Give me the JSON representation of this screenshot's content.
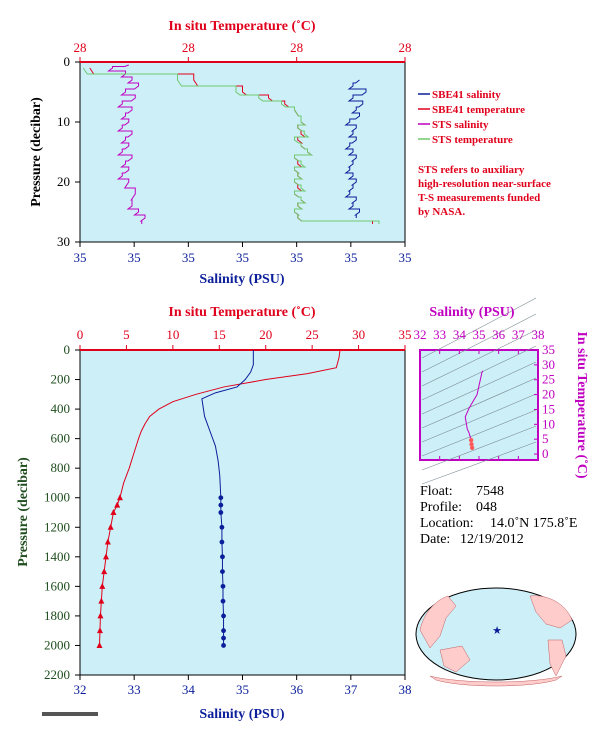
{
  "chart_data": [
    {
      "type": "line",
      "title": "",
      "top_axis_label": "In situ Temperature (˚C)",
      "top_ticks": [
        "28",
        "28",
        "28",
        "28"
      ],
      "bottom_axis_label": "Salinity (PSU)",
      "bottom_ticks": [
        "35",
        "35",
        "35",
        "35",
        "35",
        "35",
        "35"
      ],
      "ylabel": "Pressure (decibar)",
      "y_ticks": [
        "0",
        "10",
        "20",
        "30"
      ],
      "ylim": [
        30,
        0
      ],
      "grid": false,
      "legend_position": "right",
      "series": [
        {
          "name": "SBE41 salinity",
          "color": "#0b1f9a",
          "x_norm": [
            0.86,
            0.84,
            0.88,
            0.84,
            0.87,
            0.85,
            0.86,
            0.83,
            0.85,
            0.84,
            0.85,
            0.83,
            0.84,
            0.85,
            0.84,
            0.83,
            0.84,
            0.85,
            0.84,
            0.83,
            0.85,
            0.84,
            0.86,
            0.85
          ],
          "y": [
            3,
            4,
            5,
            6,
            7,
            8,
            9,
            10,
            11,
            12,
            13,
            14,
            15,
            16,
            17,
            18,
            19,
            20,
            21,
            22,
            23,
            24,
            25,
            26
          ]
        },
        {
          "name": "SBE41 temperature",
          "color": "#e0001b",
          "x_norm": [
            0.03,
            0.35,
            0.5,
            0.58,
            0.63,
            0.66,
            0.68,
            0.67,
            0.68,
            0.67,
            0.68,
            0.7,
            0.66,
            0.67,
            0.66,
            0.67,
            0.66,
            0.67,
            0.66,
            0.68,
            0.67,
            0.66,
            0.67,
            0.9
          ],
          "y": [
            1,
            3,
            5,
            6,
            7,
            8,
            10,
            11,
            12,
            13,
            14,
            15,
            16,
            17,
            18,
            19,
            20,
            21,
            22,
            23,
            24,
            25,
            26,
            27
          ]
        },
        {
          "name": "STS salinity",
          "color": "#c000c0",
          "x_norm": [
            0.15,
            0.1,
            0.14,
            0.16,
            0.18,
            0.14,
            0.17,
            0.13,
            0.16,
            0.14,
            0.15,
            0.13,
            0.16,
            0.14,
            0.15,
            0.13,
            0.16,
            0.14,
            0.15,
            0.13,
            0.15,
            0.17,
            0.16,
            0.18,
            0.2,
            0.19
          ],
          "y": [
            0.5,
            1,
            2,
            3,
            4,
            5,
            6,
            7,
            8,
            9,
            10,
            11,
            12,
            13,
            14,
            15,
            16,
            17,
            18,
            19,
            20,
            22,
            24,
            25,
            26,
            27
          ]
        },
        {
          "name": "STS temperature",
          "color": "#6ec86e",
          "x_norm": [
            0.01,
            0.3,
            0.48,
            0.55,
            0.62,
            0.66,
            0.68,
            0.67,
            0.69,
            0.66,
            0.68,
            0.7,
            0.66,
            0.68,
            0.66,
            0.67,
            0.66,
            0.68,
            0.66,
            0.68,
            0.67,
            0.66,
            0.67,
            0.92
          ],
          "y": [
            1,
            3,
            5,
            6,
            7,
            8,
            10,
            11,
            12,
            13,
            14,
            15,
            16,
            17,
            18,
            19,
            20,
            21,
            22,
            23,
            24,
            25,
            26,
            27
          ]
        }
      ]
    },
    {
      "type": "line",
      "top_axis_label": "In situ Temperature (˚C)",
      "top_ticks": [
        "0",
        "5",
        "10",
        "15",
        "20",
        "25",
        "30",
        "35"
      ],
      "xlim_top": [
        0,
        35
      ],
      "bottom_axis_label": "Salinity (PSU)",
      "bottom_ticks": [
        "32",
        "33",
        "34",
        "35",
        "36",
        "37",
        "38"
      ],
      "xlim_bottom": [
        32,
        38
      ],
      "ylabel": "Pressure (decibar)",
      "y_ticks": [
        "0",
        "200",
        "400",
        "600",
        "800",
        "1000",
        "1200",
        "1400",
        "1600",
        "1800",
        "2000",
        "2200"
      ],
      "ylim": [
        2200,
        0
      ],
      "grid": false,
      "series": [
        {
          "name": "Temperature",
          "color": "#e0001b",
          "x": [
            28.0,
            27.9,
            27.6,
            24.5,
            20.0,
            15.5,
            12.5,
            10.0,
            8.5,
            7.5,
            7.0,
            6.6,
            6.3,
            5.8,
            5.3,
            4.7,
            4.3,
            4.0,
            3.6,
            3.3,
            3.0,
            2.8,
            2.6,
            2.4,
            2.3,
            2.2,
            2.15,
            2.1
          ],
          "y": [
            0,
            50,
            120,
            160,
            200,
            250,
            300,
            350,
            400,
            450,
            500,
            550,
            600,
            700,
            800,
            900,
            1000,
            1050,
            1100,
            1200,
            1300,
            1400,
            1500,
            1600,
            1700,
            1800,
            1900,
            2000
          ],
          "marker_from": 1000
        },
        {
          "name": "Salinity",
          "color": "#0b1f9a",
          "x": [
            35.2,
            35.2,
            35.15,
            35.05,
            34.9,
            34.5,
            34.25,
            34.3,
            34.4,
            34.5,
            34.55,
            34.58,
            34.6,
            34.6,
            34.6,
            34.62,
            34.62,
            34.63,
            34.63,
            34.64,
            34.64,
            34.65,
            34.65,
            34.65,
            34.65
          ],
          "y": [
            0,
            100,
            150,
            200,
            250,
            290,
            330,
            450,
            550,
            650,
            750,
            850,
            1000,
            1050,
            1100,
            1200,
            1300,
            1400,
            1500,
            1600,
            1700,
            1800,
            1900,
            1950,
            2000
          ],
          "marker_from": 1000
        }
      ]
    },
    {
      "type": "scatter",
      "top_axis_label": "Salinity (PSU)",
      "x_ticks": [
        "32",
        "33",
        "34",
        "35",
        "36",
        "37",
        "38"
      ],
      "xlim": [
        32,
        38
      ],
      "right_axis_label": "In situ Temperature (˚C)",
      "y_ticks": [
        "0",
        "5",
        "10",
        "15",
        "20",
        "25",
        "30",
        "35"
      ],
      "ylim": [
        -2,
        35
      ],
      "series": [
        {
          "name": "T-S",
          "color": "#c000c0",
          "x": [
            35.2,
            35.15,
            35.05,
            34.9,
            34.5,
            34.3,
            34.4,
            34.5,
            34.6,
            34.62,
            34.65
          ],
          "y": [
            28.0,
            27.5,
            24.5,
            20.0,
            15.5,
            12.5,
            8.5,
            7.0,
            4.7,
            3.3,
            2.1
          ]
        }
      ]
    }
  ],
  "legend": {
    "items": [
      {
        "label": "SBE41 salinity",
        "color": "#0b1f9a"
      },
      {
        "label": "SBE41 temperature",
        "color": "#e0001b"
      },
      {
        "label": "STS salinity",
        "color": "#c000c0"
      },
      {
        "label": "STS temperature",
        "color": "#6ec86e"
      }
    ],
    "note": [
      "STS refers to auxiliary",
      "high-resolution near-surface",
      "T-S measurements funded",
      "by NASA."
    ]
  },
  "float_info": {
    "float_label": "Float:",
    "float_value": "7548",
    "profile_label": "Profile:",
    "profile_value": "048",
    "location_label": "Location:",
    "location_value": "14.0˚N  175.8˚E",
    "date_label": "Date:",
    "date_value": "12/19/2012"
  },
  "map": {
    "marker": "star",
    "marker_color": "#0b1f9a"
  }
}
